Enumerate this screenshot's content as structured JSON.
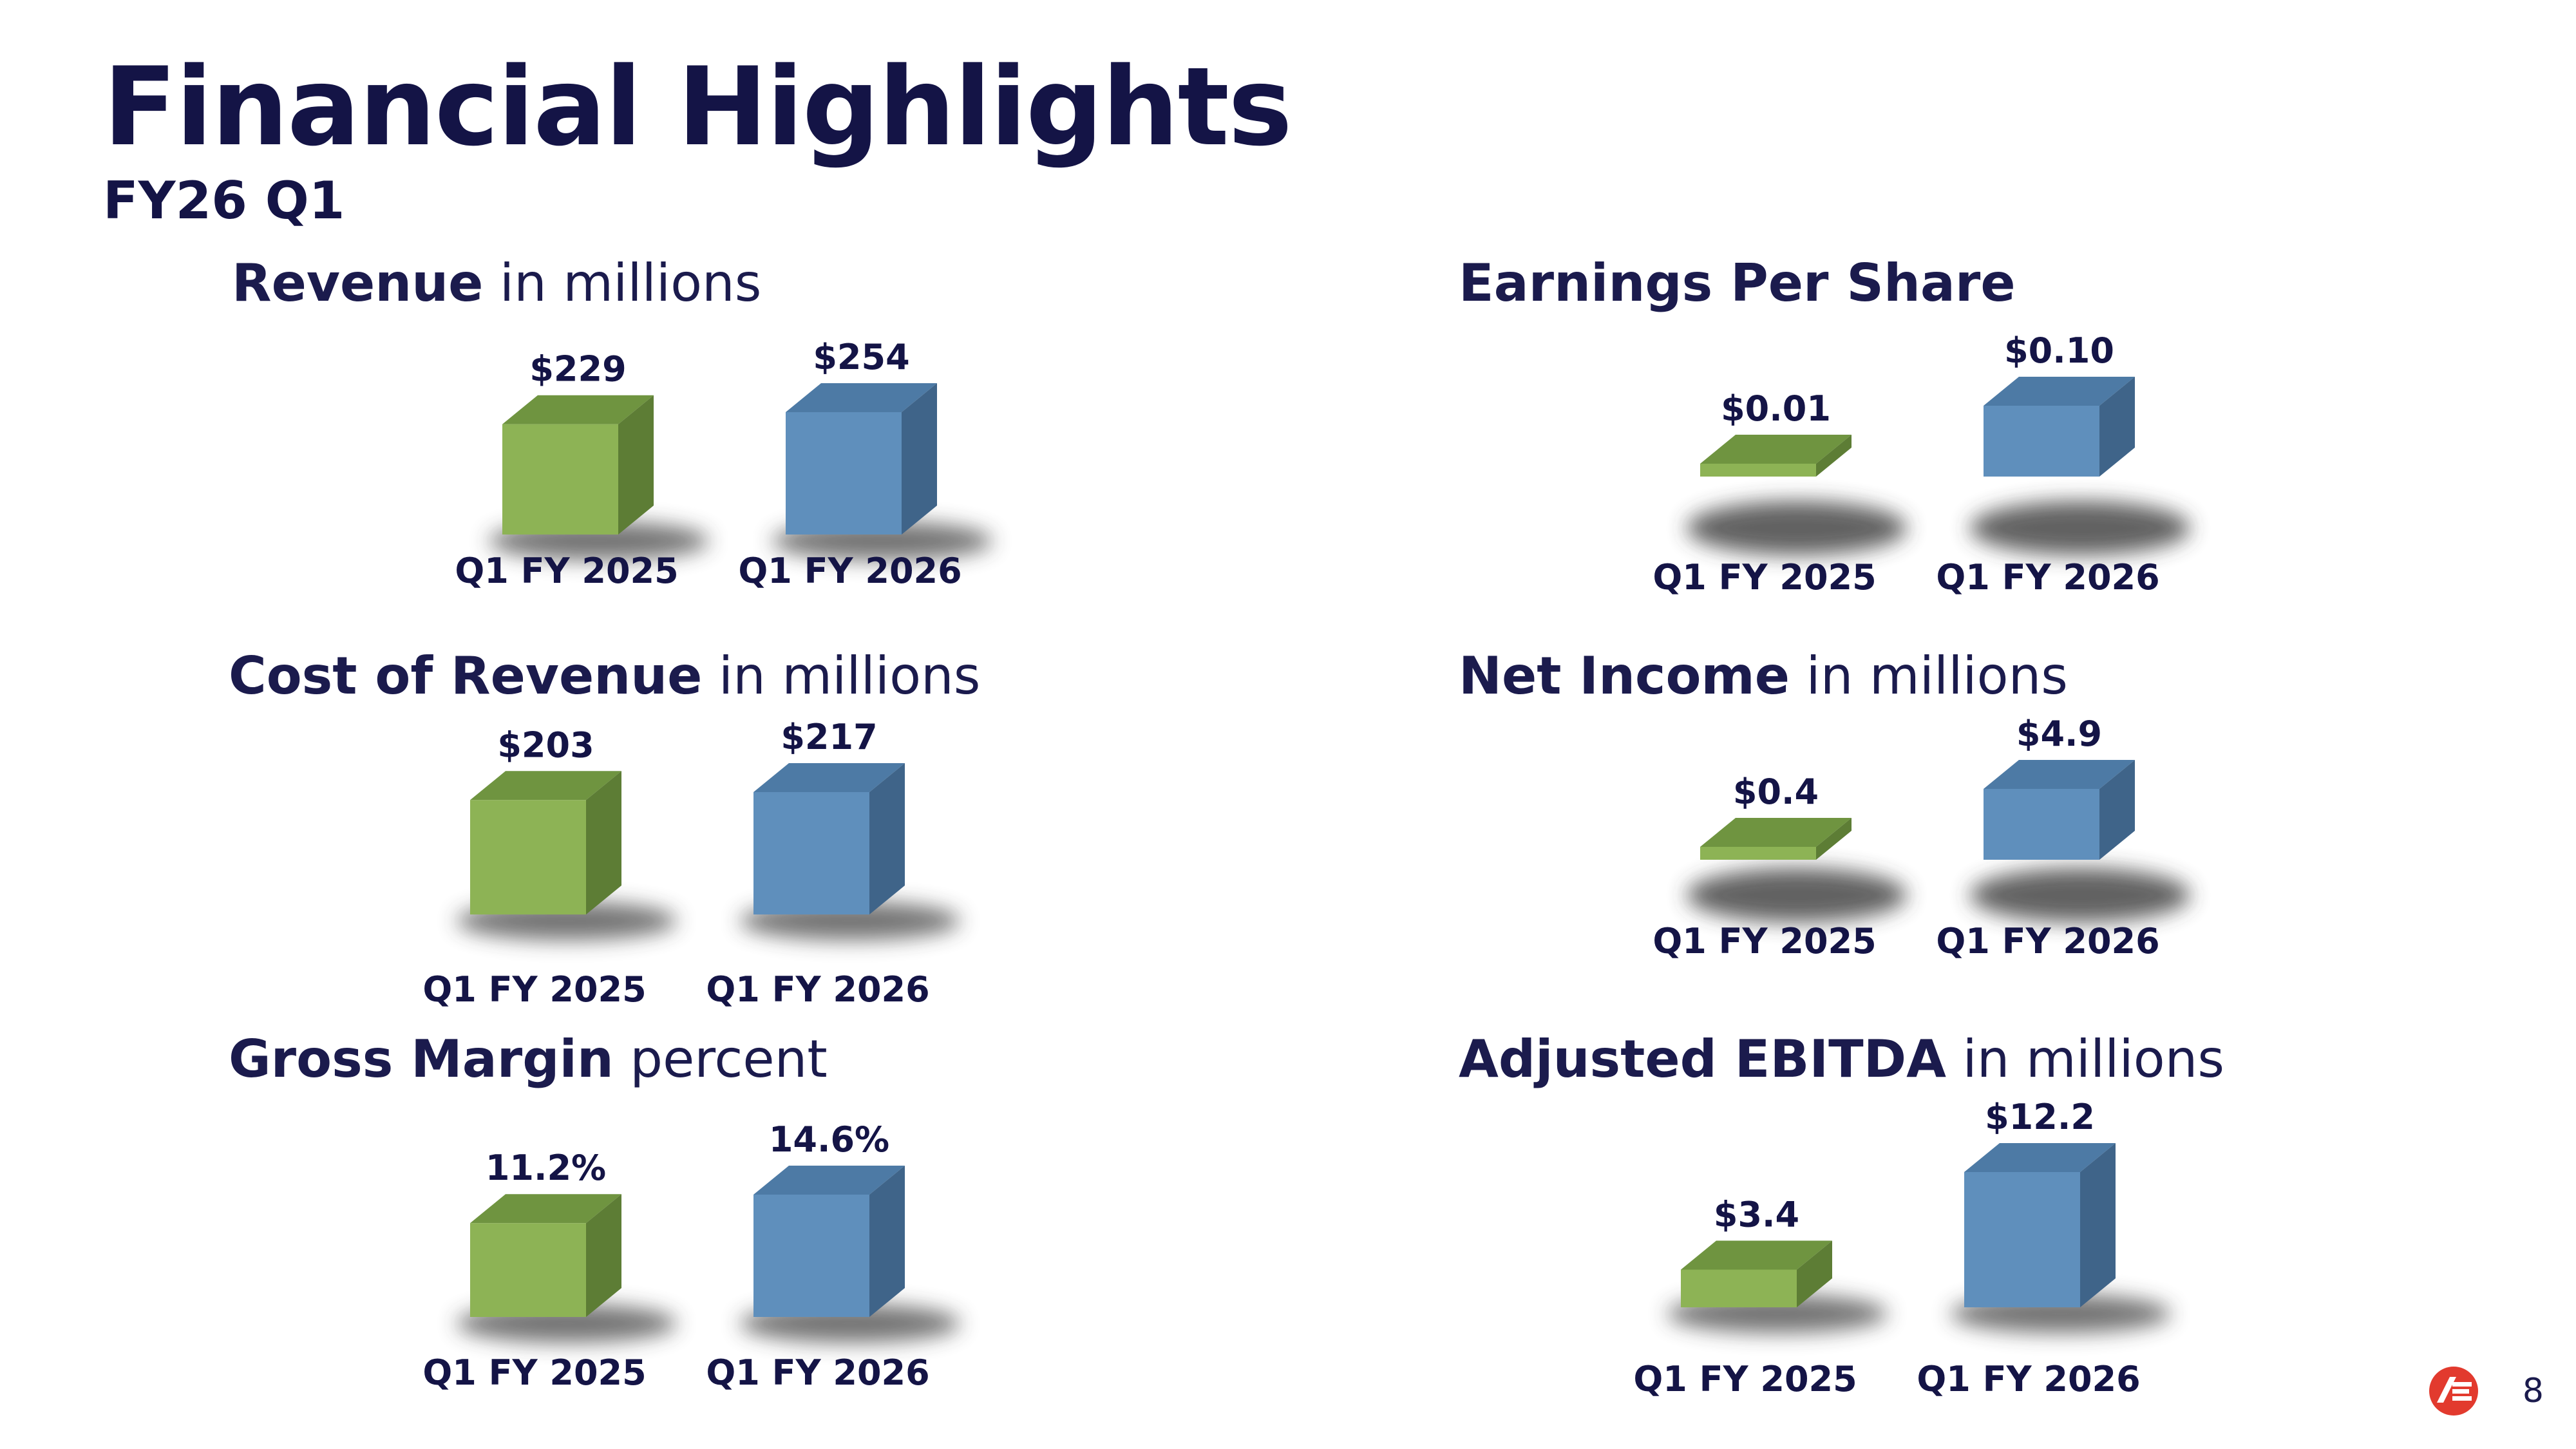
{
  "title": "Financial Highlights",
  "subtitle": "FY26 Q1",
  "page_number": "8",
  "colors": {
    "green": "#8db355",
    "blue": "#5f8fbc",
    "navy": "#141446",
    "logo_red": "#e23a2e"
  },
  "chart_data": [
    {
      "type": "bar",
      "title_bold": "Revenue",
      "title_rest": " in millions",
      "categories": [
        "Q1 FY 2025",
        "Q1 FY 2026"
      ],
      "values": [
        229,
        254
      ],
      "labels": [
        "$229",
        "$254"
      ]
    },
    {
      "type": "bar",
      "title_bold": "Earnings Per Share",
      "title_rest": "",
      "categories": [
        "Q1 FY 2025",
        "Q1 FY 2026"
      ],
      "values": [
        0.01,
        0.1
      ],
      "labels": [
        "$0.01",
        "$0.10"
      ]
    },
    {
      "type": "bar",
      "title_bold": "Cost of Revenue",
      "title_rest": " in millions",
      "categories": [
        "Q1 FY 2025",
        "Q1 FY 2026"
      ],
      "values": [
        203,
        217
      ],
      "labels": [
        "$203",
        "$217"
      ]
    },
    {
      "type": "bar",
      "title_bold": "Net Income",
      "title_rest": " in millions",
      "categories": [
        "Q1 FY 2025",
        "Q1 FY 2026"
      ],
      "values": [
        0.4,
        4.9
      ],
      "labels": [
        "$0.4",
        "$4.9"
      ]
    },
    {
      "type": "bar",
      "title_bold": "Gross Margin",
      "title_rest": " percent",
      "categories": [
        "Q1 FY 2025",
        "Q1 FY 2026"
      ],
      "values": [
        11.2,
        14.6
      ],
      "labels": [
        "11.2%",
        "14.6%"
      ]
    },
    {
      "type": "bar",
      "title_bold": "Adjusted EBITDA",
      "title_rest": " in millions",
      "categories": [
        "Q1 FY 2025",
        "Q1 FY 2026"
      ],
      "values": [
        3.4,
        12.2
      ],
      "labels": [
        "$3.4",
        "$12.2"
      ]
    }
  ]
}
